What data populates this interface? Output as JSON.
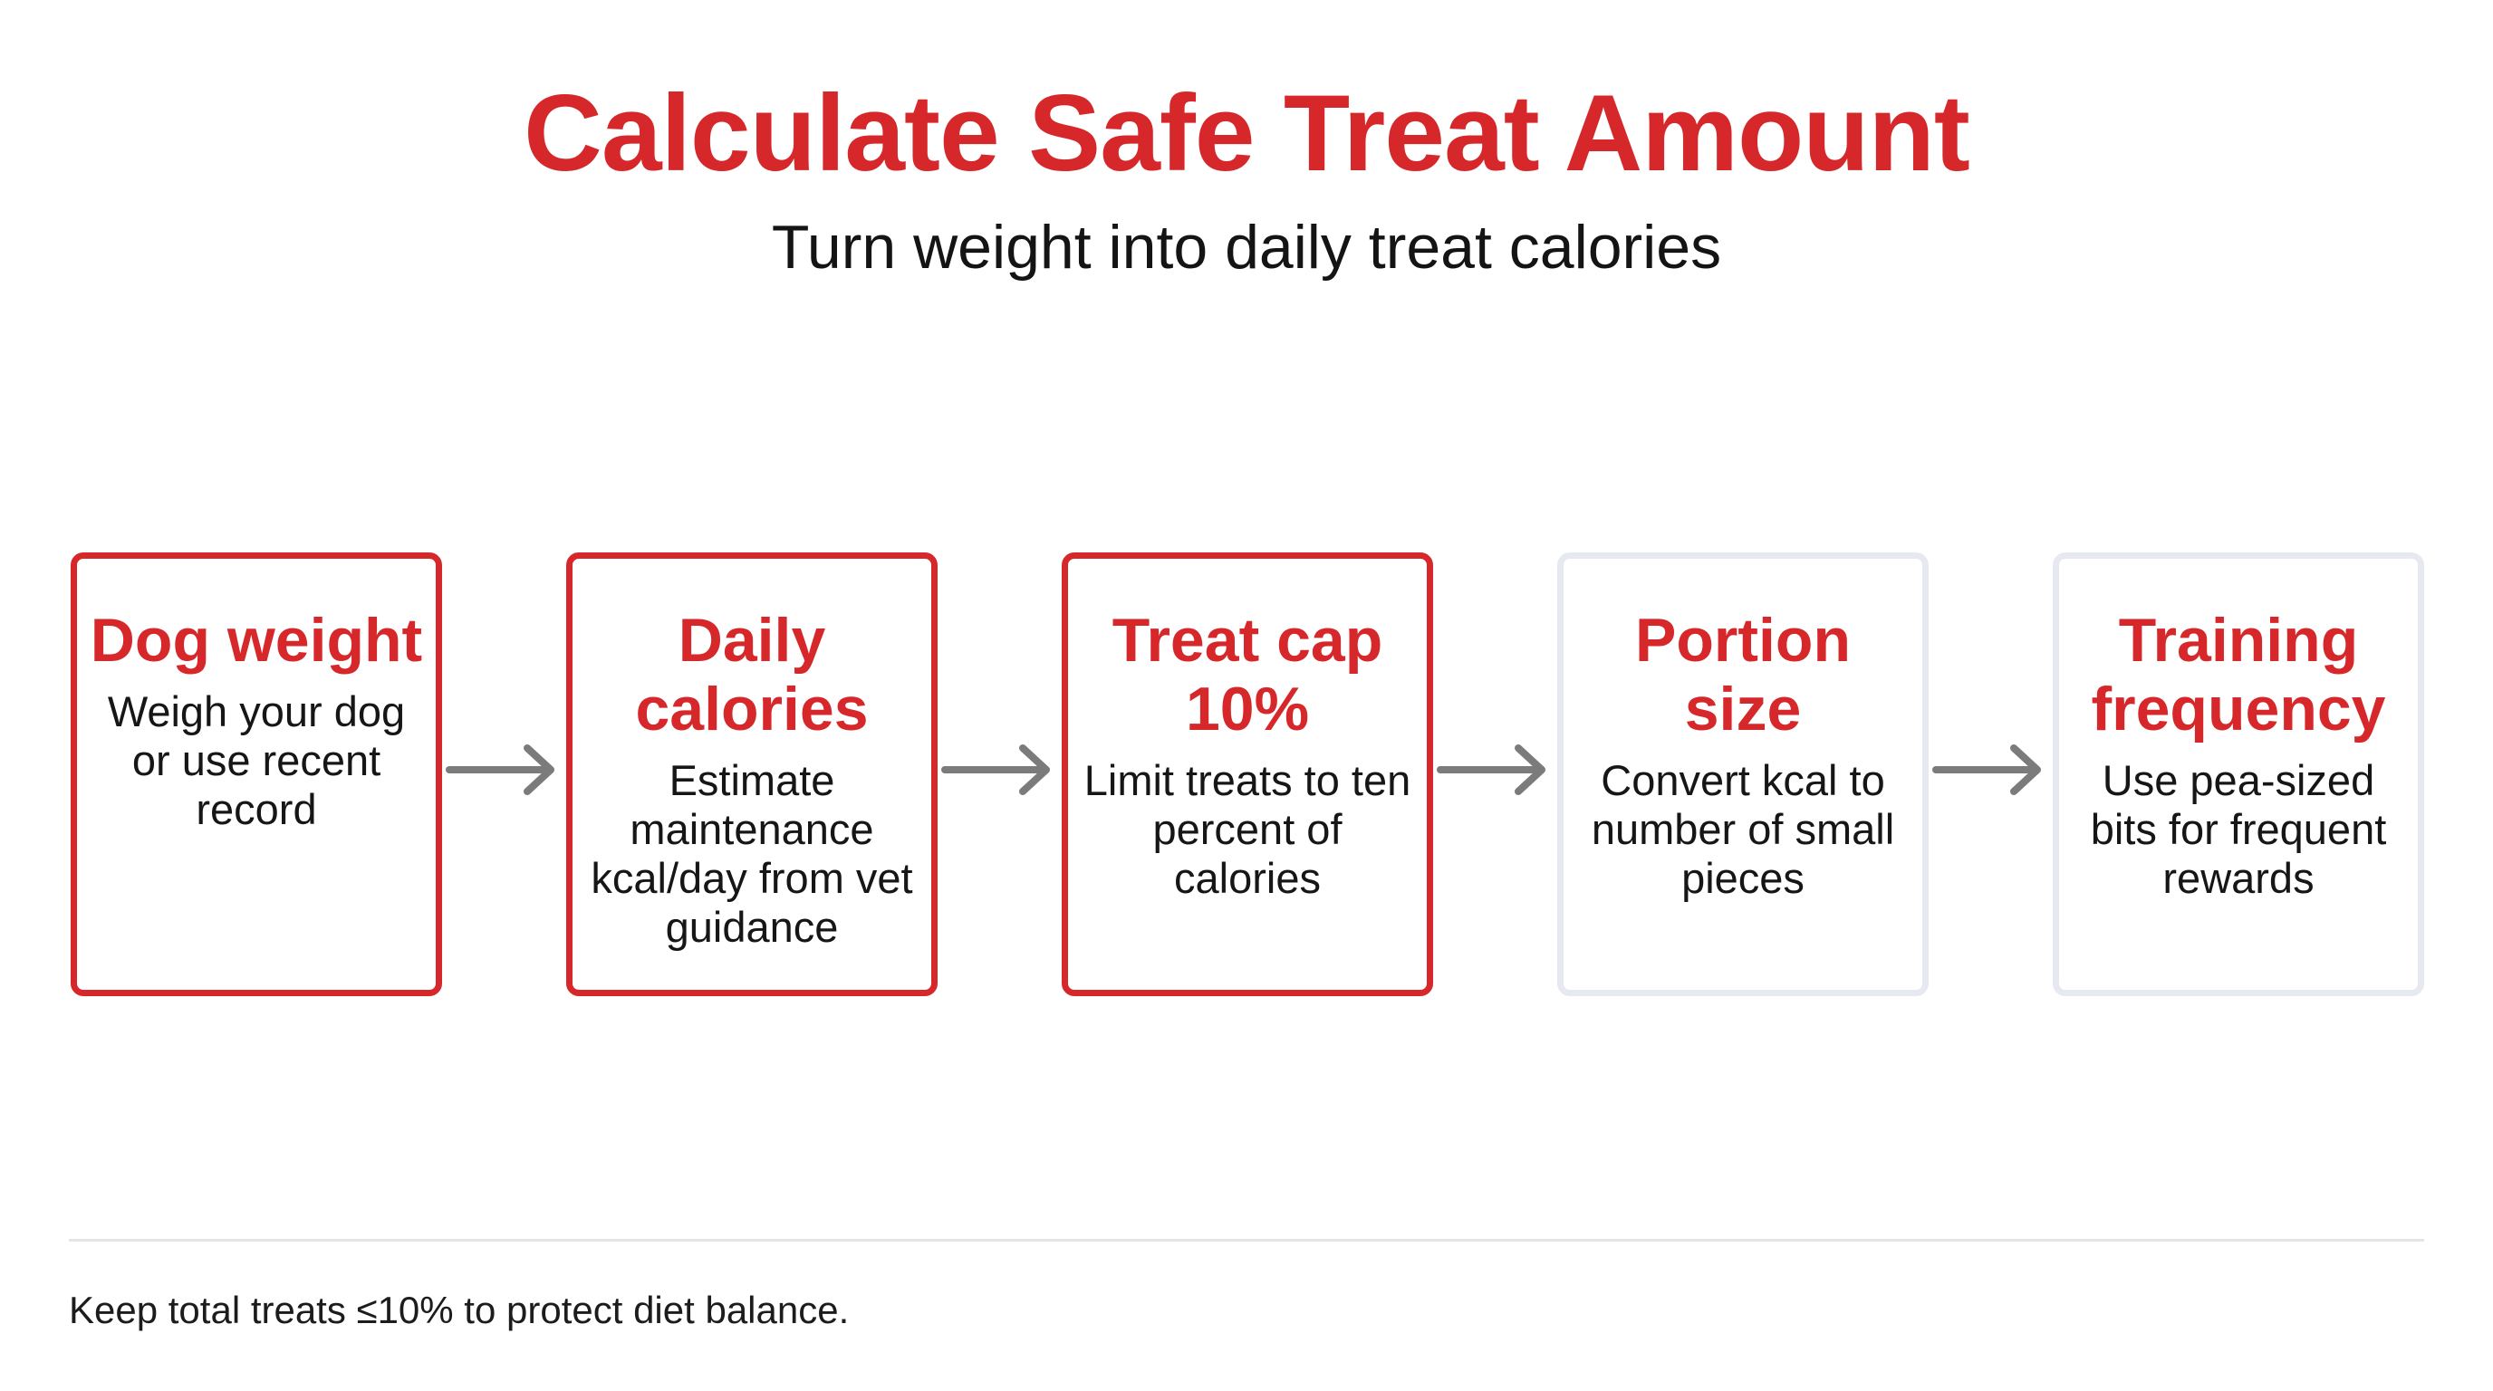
{
  "colors": {
    "accent": "#d6282b",
    "pending_border": "#e6e9ef",
    "arrow": "#7b7b7b",
    "text": "#161616",
    "divider": "#e3e5e8"
  },
  "header": {
    "title": "Calculate Safe Treat Amount",
    "subtitle": "Turn weight into daily treat calories"
  },
  "steps": [
    {
      "title": "Dog weight",
      "description": "Weigh your dog or use recent record",
      "state": "active"
    },
    {
      "title": "Daily calories",
      "description": "Estimate maintenance kcal/day from vet guidance",
      "state": "active"
    },
    {
      "title": "Treat cap 10%",
      "description": "Limit treats to ten percent of calories",
      "state": "active"
    },
    {
      "title": "Portion size",
      "description": "Convert kcal to number of small pieces",
      "state": "pending"
    },
    {
      "title": "Training frequency",
      "description": "Use pea-sized bits for frequent rewards",
      "state": "pending"
    }
  ],
  "connector_icon": "arrow-right-icon",
  "footer": {
    "note": "Keep total treats ≤10% to protect diet balance."
  }
}
